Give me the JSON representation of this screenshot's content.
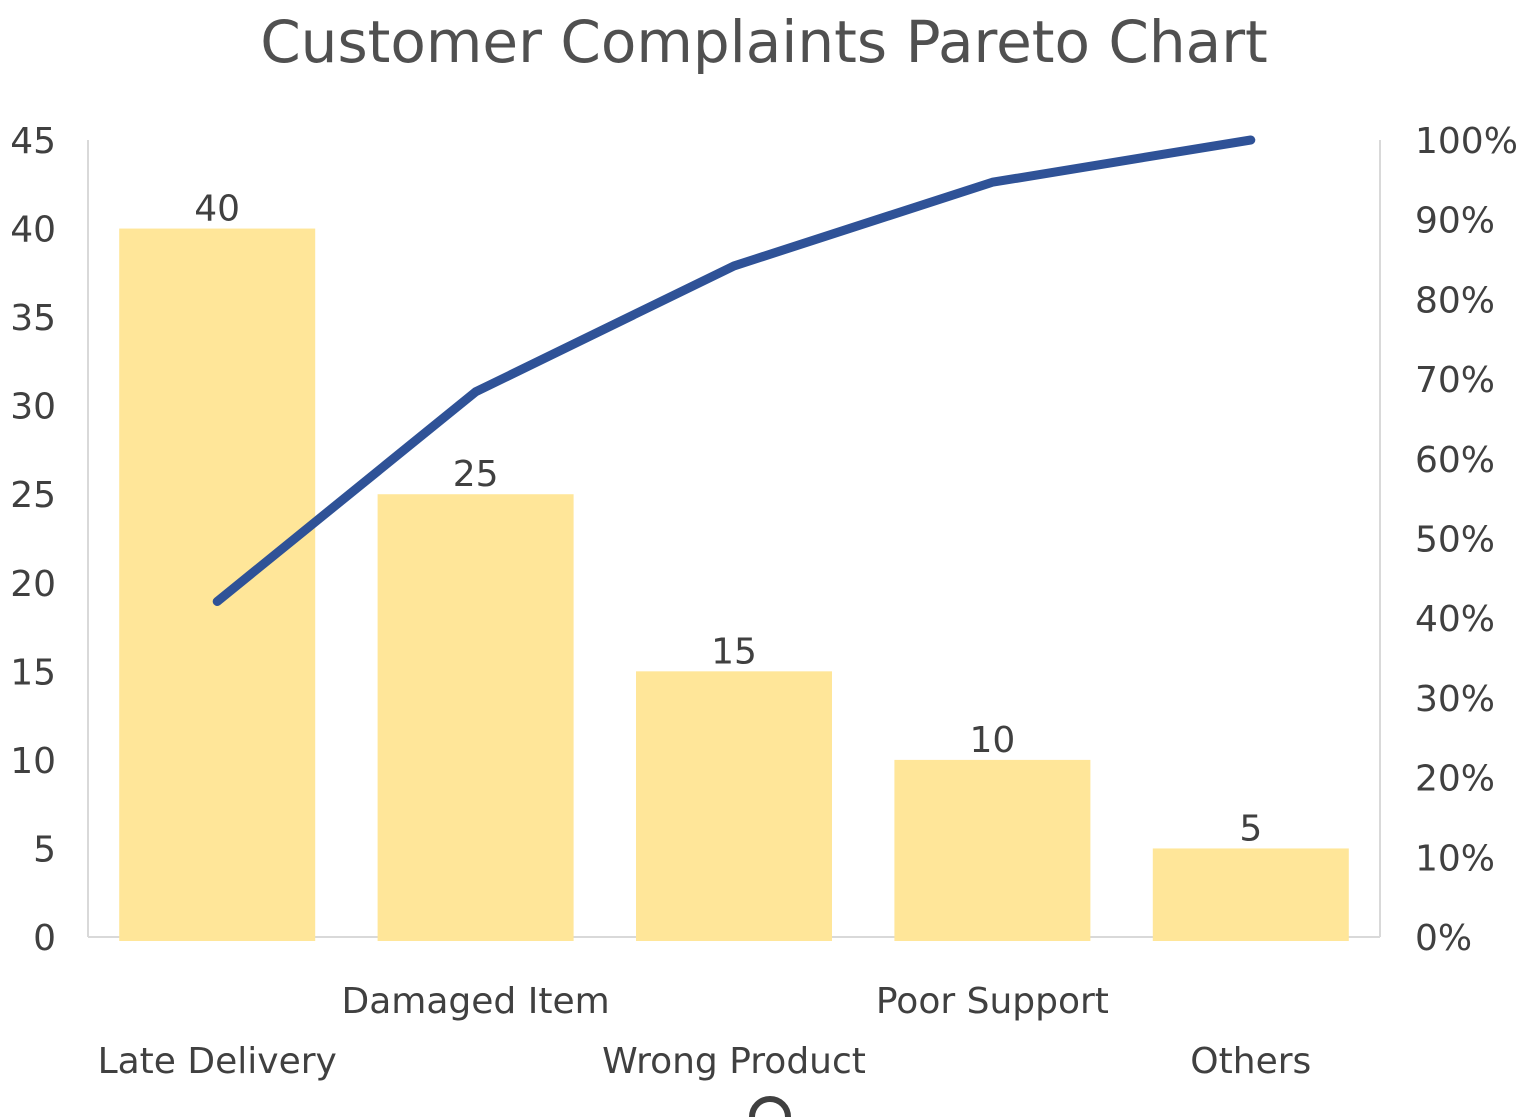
{
  "chart_data": {
    "type": "bar",
    "subtype": "pareto",
    "title": "Customer Complaints Pareto Chart",
    "categories": [
      "Late Delivery",
      "Damaged Item",
      "Wrong Product",
      "Poor Support",
      "Others"
    ],
    "series": [
      {
        "type": "bar",
        "axis": "left",
        "values": [
          40,
          25,
          15,
          10,
          5
        ],
        "data_labels": [
          "40",
          "25",
          "15",
          "10",
          "5"
        ],
        "color": "#FFE699"
      },
      {
        "type": "line",
        "axis": "right",
        "values": [
          42.1,
          68.4,
          84.2,
          94.7,
          100
        ],
        "color": "#2F5297"
      }
    ],
    "y_left": {
      "ylim": [
        0,
        45
      ],
      "ticks": [
        "0",
        "5",
        "10",
        "15",
        "20",
        "25",
        "30",
        "35",
        "40",
        "45"
      ]
    },
    "y_right": {
      "ylim": [
        0,
        100
      ],
      "ticks": [
        "0%",
        "10%",
        "20%",
        "30%",
        "40%",
        "50%",
        "60%",
        "70%",
        "80%",
        "90%",
        "100%"
      ]
    },
    "xlabel": "",
    "ylabel": "",
    "grid": false,
    "legend": "none"
  }
}
